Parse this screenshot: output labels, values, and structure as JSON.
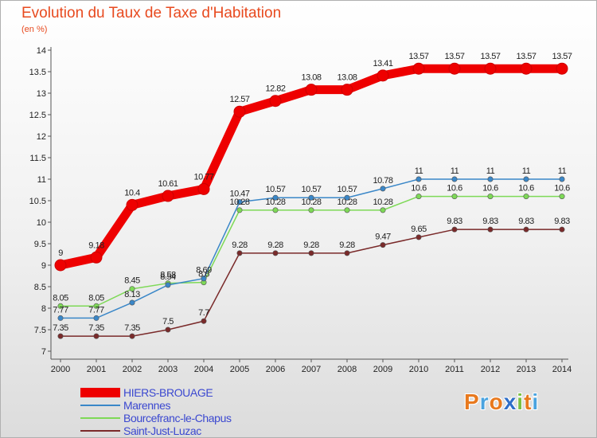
{
  "title": "Evolution du Taux de Taxe d'Habitation",
  "unit_label": "(en %)",
  "logo": {
    "text": [
      "P",
      "r",
      "o",
      "x",
      "i",
      "t",
      "i"
    ],
    "colors": [
      "#e8791e",
      "#4aa3df",
      "#e8791e",
      "#2f6fc9",
      "#7ac143",
      "#e8791e",
      "#4aa3df"
    ]
  },
  "chart_data": {
    "type": "line",
    "x": [
      "2000",
      "2001",
      "2002",
      "2003",
      "2004",
      "2005",
      "2006",
      "2007",
      "2008",
      "2009",
      "2010",
      "2011",
      "2012",
      "2013",
      "2014"
    ],
    "ylim": [
      7,
      14
    ],
    "yticks": [
      "7",
      "7.5",
      "8",
      "8.5",
      "9",
      "9.5",
      "10",
      "10.5",
      "11",
      "11.5",
      "12",
      "12.5",
      "13",
      "13.5",
      "14"
    ],
    "grid": false,
    "legend_position": "bottom-left",
    "series": [
      {
        "name": "HIERS-BROUAGE",
        "color": "#ee0000",
        "values": [
          9,
          9.18,
          10.4,
          10.61,
          10.77,
          12.57,
          12.82,
          13.08,
          13.08,
          13.41,
          13.57,
          13.57,
          13.57,
          13.57,
          13.57
        ],
        "labels": [
          "9",
          "9.18",
          "10.4",
          "10.61",
          "10.77",
          "12.57",
          "12.82",
          "13.08",
          "13.08",
          "13.41",
          "13.57",
          "13.57",
          "13.57",
          "13.57",
          "13.57"
        ]
      },
      {
        "name": "Marennes",
        "color": "#3a87c8",
        "values": [
          7.77,
          7.77,
          8.13,
          8.54,
          8.69,
          10.47,
          10.57,
          10.57,
          10.57,
          10.78,
          11,
          11,
          11,
          11,
          11
        ],
        "labels": [
          "7.77",
          "7.77",
          "8.13",
          "8.54",
          "8.69",
          "10.47",
          "10.57",
          "10.57",
          "10.57",
          "10.78",
          "11",
          "11",
          "11",
          "11",
          "11"
        ]
      },
      {
        "name": "Bourcefranc-le-Chapus",
        "color": "#7ed957",
        "values": [
          8.05,
          8.05,
          8.45,
          8.58,
          8.6,
          10.28,
          10.28,
          10.28,
          10.28,
          10.28,
          10.6,
          10.6,
          10.6,
          10.6,
          10.6
        ],
        "labels": [
          "8.05",
          "8.05",
          "8.45",
          "8.58",
          "8.6",
          "10.28",
          "10.28",
          "10.28",
          "10.28",
          "10.28",
          "10.6",
          "10.6",
          "10.6",
          "10.6",
          "10.6"
        ]
      },
      {
        "name": "Saint-Just-Luzac",
        "color": "#7a2a2a",
        "values": [
          7.35,
          7.35,
          7.35,
          7.5,
          7.7,
          9.28,
          9.28,
          9.28,
          9.28,
          9.47,
          9.65,
          9.83,
          9.83,
          9.83,
          9.83
        ],
        "labels": [
          "7.35",
          "7.35",
          "7.35",
          "7.5",
          "7.7",
          "9.28",
          "9.28",
          "9.28",
          "9.28",
          "9.47",
          "9.65",
          "9.83",
          "9.83",
          "9.83",
          "9.83"
        ]
      }
    ]
  }
}
